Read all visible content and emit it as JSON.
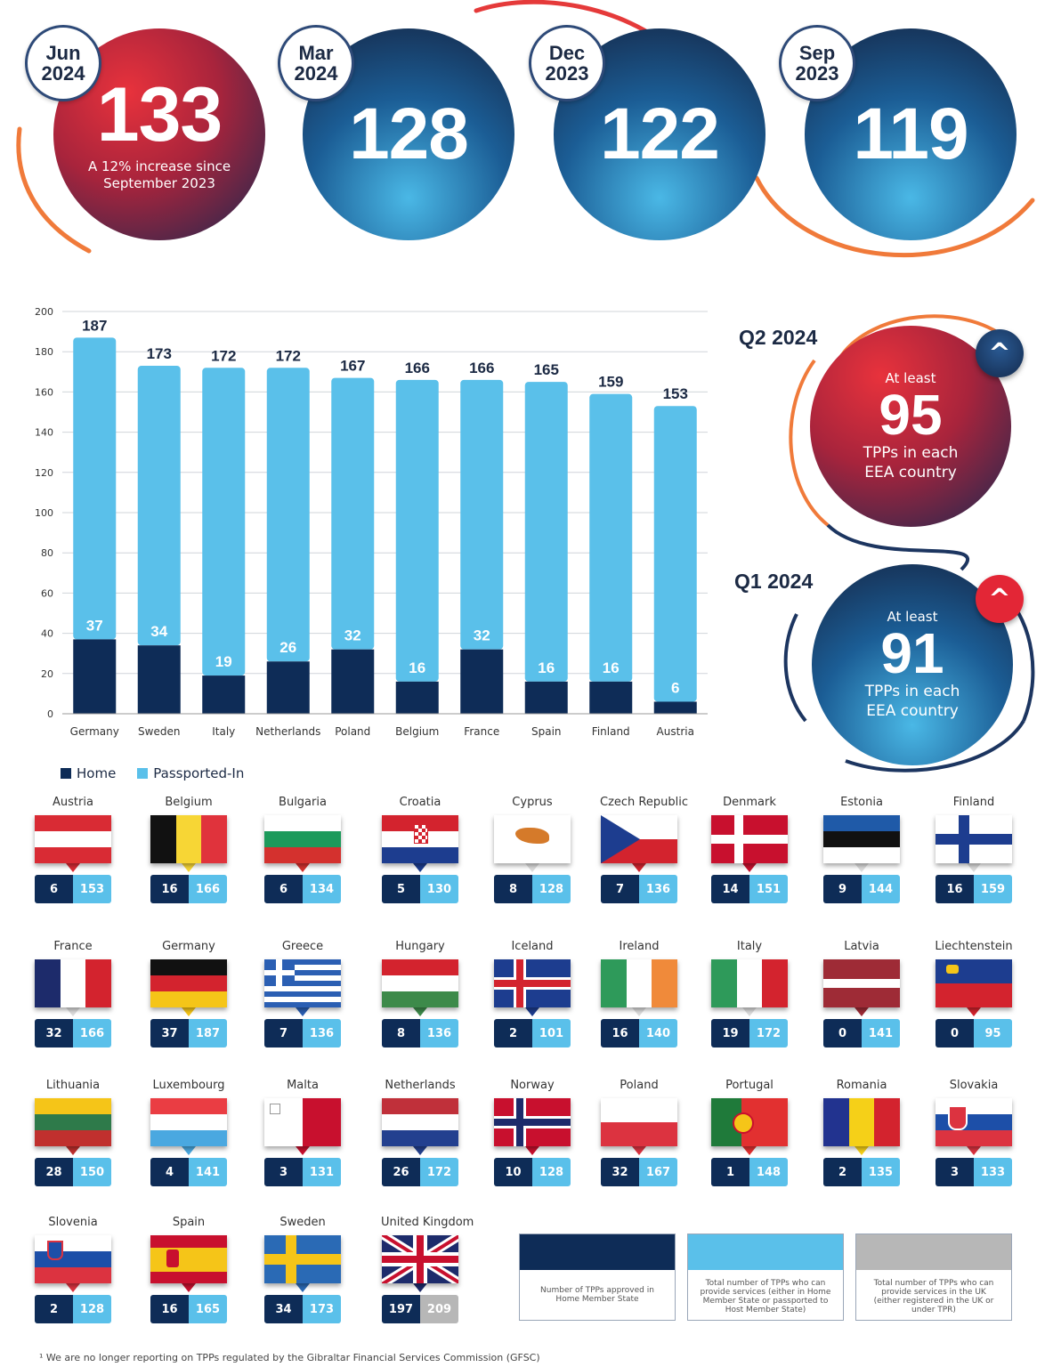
{
  "headline": {
    "jun2024": {
      "month": "Jun",
      "year": "2024",
      "value": "133",
      "note_line1": "A 12% increase since",
      "note_line2": "September 2023"
    },
    "mar2024": {
      "month": "Mar",
      "year": "2024",
      "value": "128"
    },
    "dec2023": {
      "month": "Dec",
      "year": "2023",
      "value": "122"
    },
    "sep2023": {
      "month": "Sep",
      "year": "2023",
      "value": "119"
    }
  },
  "quarters": {
    "q2": {
      "label": "Q2 2024",
      "at_least": "At least",
      "value": "95",
      "desc_line1": "TPPs in each",
      "desc_line2": "EEA country"
    },
    "q1": {
      "label": "Q1 2024",
      "at_least": "At least",
      "value": "91",
      "desc_line1": "TPPs in each",
      "desc_line2": "EEA country"
    }
  },
  "legend": {
    "home": "Home",
    "passported": "Passported-In"
  },
  "colors": {
    "home": "#0e2c57",
    "passported": "#5ac0ea",
    "uk": "#b7b7b7",
    "red": "#d9223a"
  },
  "chart_data": {
    "type": "bar",
    "stacked": true,
    "categories": [
      "Germany",
      "Sweden",
      "Italy",
      "Netherlands",
      "Poland",
      "Belgium",
      "France",
      "Spain",
      "Finland",
      "Austria"
    ],
    "series": [
      {
        "name": "Home",
        "values": [
          37,
          34,
          19,
          26,
          32,
          16,
          32,
          16,
          16,
          6
        ]
      },
      {
        "name": "Passported-In",
        "values": [
          150,
          139,
          153,
          146,
          135,
          150,
          134,
          149,
          143,
          147
        ]
      }
    ],
    "totals": [
      187,
      173,
      172,
      172,
      167,
      166,
      166,
      165,
      159,
      153
    ],
    "ylim": [
      0,
      200
    ],
    "yticks": [
      0,
      20,
      40,
      60,
      80,
      100,
      120,
      140,
      160,
      180,
      200
    ],
    "grid": true,
    "legend_position": "bottom-left"
  },
  "countries": [
    {
      "name": "Austria",
      "home": "6",
      "total": "153"
    },
    {
      "name": "Belgium",
      "home": "16",
      "total": "166"
    },
    {
      "name": "Bulgaria",
      "home": "6",
      "total": "134"
    },
    {
      "name": "Croatia",
      "home": "5",
      "total": "130"
    },
    {
      "name": "Cyprus",
      "home": "8",
      "total": "128"
    },
    {
      "name": "Czech Republic",
      "home": "7",
      "total": "136"
    },
    {
      "name": "Denmark",
      "home": "14",
      "total": "151"
    },
    {
      "name": "Estonia",
      "home": "9",
      "total": "144"
    },
    {
      "name": "Finland",
      "home": "16",
      "total": "159"
    },
    {
      "name": "France",
      "home": "32",
      "total": "166"
    },
    {
      "name": "Germany",
      "home": "37",
      "total": "187"
    },
    {
      "name": "Greece",
      "home": "7",
      "total": "136"
    },
    {
      "name": "Hungary",
      "home": "8",
      "total": "136"
    },
    {
      "name": "Iceland",
      "home": "2",
      "total": "101"
    },
    {
      "name": "Ireland",
      "home": "16",
      "total": "140"
    },
    {
      "name": "Italy",
      "home": "19",
      "total": "172"
    },
    {
      "name": "Latvia",
      "home": "0",
      "total": "141"
    },
    {
      "name": "Liechtenstein",
      "home": "0",
      "total": "95"
    },
    {
      "name": "Lithuania",
      "home": "28",
      "total": "150"
    },
    {
      "name": "Luxembourg",
      "home": "4",
      "total": "141"
    },
    {
      "name": "Malta",
      "home": "3",
      "total": "131"
    },
    {
      "name": "Netherlands",
      "home": "26",
      "total": "172"
    },
    {
      "name": "Norway",
      "home": "10",
      "total": "128"
    },
    {
      "name": "Poland",
      "home": "32",
      "total": "167"
    },
    {
      "name": "Portugal",
      "home": "1",
      "total": "148"
    },
    {
      "name": "Romania",
      "home": "2",
      "total": "135"
    },
    {
      "name": "Slovakia",
      "home": "3",
      "total": "133"
    },
    {
      "name": "Slovenia",
      "home": "2",
      "total": "128"
    },
    {
      "name": "Spain",
      "home": "16",
      "total": "165"
    },
    {
      "name": "Sweden",
      "home": "34",
      "total": "173"
    },
    {
      "name": "United Kingdom",
      "home": "197",
      "total": "209"
    }
  ],
  "key": {
    "home_desc": "Number of TPPs approved in Home Member State",
    "passported_desc": "Total number of TPPs who can provide services (either in Home Member State or passported to Host Member State)",
    "uk_desc": "Total number of TPPs who can provide services in the UK (either registered in the UK or under TPR)"
  },
  "footnote": "¹ We are no longer reporting on TPPs regulated by the Gibraltar Financial Services Commission (GFSC)"
}
